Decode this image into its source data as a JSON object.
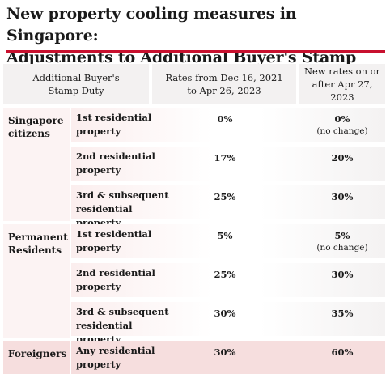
{
  "title_line1": "New property cooling measures in Singapore:",
  "title_line2": "Adjustments to Additional Buyer's Stamp Duty",
  "headers": {
    "col1_line1": "Additional Buyer's",
    "col1_line2": "Stamp Duty",
    "col2_line1": "Rates from Dec 16, 2021",
    "col2_line2": "to Apr 26, 2023",
    "col3_line1": "New rates on or",
    "col3_line2": "after Apr 27, 2023"
  },
  "groups": [
    {
      "label_line1": "Singapore",
      "label_line2": "citizens",
      "rows": [
        {
          "p1": "1st residential",
          "p2": "property",
          "old": "0%",
          "new": "0%",
          "note": "(no change)"
        },
        {
          "p1": "2nd residential",
          "p2": "property",
          "old": "17%",
          "new": "20%",
          "note": ""
        },
        {
          "p1": "3rd & subsequent",
          "p2": "residential property",
          "old": "25%",
          "new": "30%",
          "note": ""
        }
      ]
    },
    {
      "label_line1": "Permanent",
      "label_line2": "Residents",
      "rows": [
        {
          "p1": "1st residential",
          "p2": "property",
          "old": "5%",
          "new": "5%",
          "note": "(no change)"
        },
        {
          "p1": "2nd residential",
          "p2": "property",
          "old": "25%",
          "new": "30%",
          "note": ""
        },
        {
          "p1": "3rd & subsequent",
          "p2": "residential property",
          "old": "30%",
          "new": "35%",
          "note": ""
        }
      ]
    },
    {
      "label_line1": "Foreigners",
      "label_line2": "",
      "rows": [
        {
          "p1": "Any residential",
          "p2": "property",
          "old": "30%",
          "new": "60%",
          "note": ""
        }
      ]
    }
  ],
  "colors": {
    "accent_rule": "#c8102e",
    "header_bg": "#f3f1f1",
    "group_bg": "#fcf3f3",
    "row_fade_left": "#fbeeee",
    "row_fade_right": "#f4f2f2",
    "foreigners_bg": "#f6dede"
  }
}
